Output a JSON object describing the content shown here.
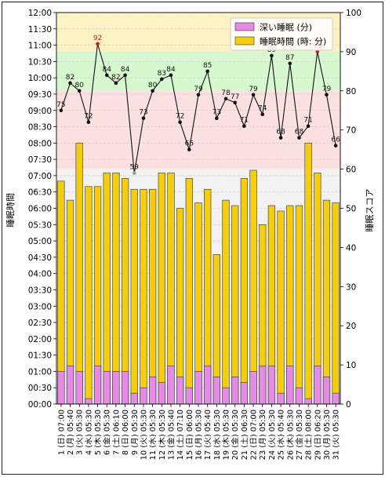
{
  "chart_data": {
    "type": "bar",
    "y_left_label": "睡眠時間",
    "y_right_label": "睡眠スコア",
    "y_left_range_minutes": [
      0,
      720
    ],
    "y_left_ticks": [
      "00:00",
      "00:30",
      "01:00",
      "01:30",
      "02:00",
      "02:30",
      "03:00",
      "03:30",
      "04:00",
      "04:30",
      "05:00",
      "05:30",
      "06:00",
      "06:30",
      "07:00",
      "07:30",
      "08:00",
      "08:30",
      "09:00",
      "09:30",
      "10:00",
      "10:30",
      "11:00",
      "11:30",
      "12:00"
    ],
    "y_right_range": [
      0,
      100
    ],
    "y_right_ticks": [
      "0",
      "10",
      "20",
      "30",
      "40",
      "50",
      "60",
      "70",
      "80",
      "90",
      "100"
    ],
    "score_bands": [
      {
        "from": 90,
        "to": 100,
        "color": "#fdf2c4"
      },
      {
        "from": 80,
        "to": 90,
        "color": "#d6f7cf"
      },
      {
        "from": 60,
        "to": 80,
        "color": "#fbe0e0"
      },
      {
        "from": 0,
        "to": 60,
        "color": "#f2f2f2"
      }
    ],
    "legend": [
      {
        "name": "深い睡眠 (分)",
        "color": "#e58be5"
      },
      {
        "name": "睡眠時間 (時: 分)",
        "color": "#f4cc10"
      }
    ],
    "legend_position": "top-right",
    "grid": true,
    "categories": [
      "1 (日) 07:00",
      "2 (月) 05:40",
      "3 (火) 05:30",
      "4 (水) 05:30",
      "5 (木) 05:30",
      "6 (金) 05:30",
      "7 (土) 06:10",
      "8 (日) 06:00",
      "9 (月) 05:30",
      "10 (火) 05:30",
      "11 (水) 05:30",
      "12 (木) 05:30",
      "13 (金) 05:40",
      "14 (土) 07:10",
      "15 (日) 06:00",
      "16 (月) 05:30",
      "17 (火) 05:40",
      "18 (水) 05:30",
      "19 (木) 05:30",
      "20 (金) 05:30",
      "21 (土) 06:30",
      "22 (日) 07:00",
      "23 (月) 05:30",
      "24 (火) 05:30",
      "25 (水) 05:40",
      "26 (木) 05:30",
      "27 (金) 05:30",
      "28 (土) 08:00",
      "29 (日) 06:20",
      "30 (月) 05:30",
      "31 (火) 05:30"
    ],
    "series": [
      {
        "name": "睡眠時間 (時: 分)",
        "unit": "minutes",
        "values": [
          410,
          375,
          480,
          400,
          400,
          425,
          425,
          415,
          395,
          395,
          395,
          425,
          425,
          360,
          415,
          370,
          395,
          275,
          375,
          365,
          415,
          430,
          330,
          365,
          355,
          365,
          365,
          480,
          425,
          375,
          370
        ]
      },
      {
        "name": "深い睡眠 (分)",
        "unit": "minutes",
        "values": [
          60,
          70,
          60,
          10,
          70,
          60,
          60,
          60,
          20,
          30,
          50,
          40,
          70,
          50,
          30,
          60,
          70,
          50,
          30,
          50,
          40,
          60,
          70,
          70,
          20,
          70,
          30,
          10,
          70,
          50,
          20
        ]
      },
      {
        "name": "睡眠スコア",
        "type": "line",
        "axis": "right",
        "values": [
          75,
          82,
          80,
          72,
          92,
          84,
          82,
          84,
          59,
          73,
          80,
          83,
          84,
          72,
          65,
          79,
          85,
          73,
          78,
          77,
          71,
          79,
          74,
          89,
          68,
          87,
          68,
          71,
          90,
          79,
          66
        ]
      }
    ]
  }
}
